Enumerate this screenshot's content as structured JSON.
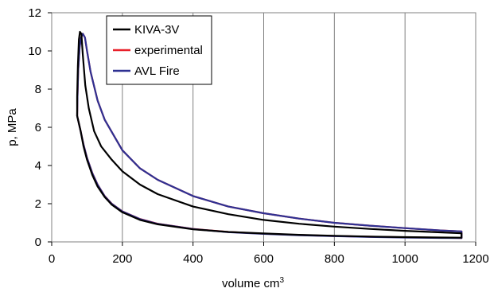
{
  "chart_data": {
    "type": "line",
    "title": "",
    "xlabel": "volume cm",
    "xlabel_superscript": "3",
    "ylabel": "p, MPa",
    "xlim": [
      0,
      1200
    ],
    "ylim": [
      0,
      12
    ],
    "x_ticks": [
      0,
      200,
      400,
      600,
      800,
      1000,
      1200
    ],
    "y_ticks": [
      0,
      2,
      4,
      6,
      8,
      10,
      12
    ],
    "grid": "vertical",
    "legend_position": "top-left",
    "series": [
      {
        "name": "KIVA-3V",
        "color": "#000000",
        "points": [
          [
            72,
            6.6
          ],
          [
            72,
            7.6
          ],
          [
            74,
            9.2
          ],
          [
            77,
            10.6
          ],
          [
            80,
            11.0
          ],
          [
            84,
            10.9
          ],
          [
            88,
            9.8
          ],
          [
            95,
            8.2
          ],
          [
            105,
            7.0
          ],
          [
            120,
            5.8
          ],
          [
            140,
            5.0
          ],
          [
            170,
            4.3
          ],
          [
            200,
            3.7
          ],
          [
            250,
            3.0
          ],
          [
            300,
            2.5
          ],
          [
            400,
            1.85
          ],
          [
            500,
            1.45
          ],
          [
            600,
            1.15
          ],
          [
            700,
            0.95
          ],
          [
            800,
            0.8
          ],
          [
            900,
            0.68
          ],
          [
            1000,
            0.58
          ],
          [
            1100,
            0.5
          ],
          [
            1160,
            0.45
          ],
          [
            1160,
            0.22
          ],
          [
            1100,
            0.23
          ],
          [
            1000,
            0.25
          ],
          [
            900,
            0.28
          ],
          [
            800,
            0.32
          ],
          [
            700,
            0.37
          ],
          [
            600,
            0.44
          ],
          [
            500,
            0.52
          ],
          [
            400,
            0.66
          ],
          [
            300,
            0.92
          ],
          [
            250,
            1.15
          ],
          [
            200,
            1.55
          ],
          [
            170,
            1.95
          ],
          [
            150,
            2.35
          ],
          [
            130,
            2.9
          ],
          [
            115,
            3.5
          ],
          [
            100,
            4.3
          ],
          [
            90,
            5.0
          ],
          [
            82,
            5.8
          ],
          [
            72,
            6.6
          ]
        ]
      },
      {
        "name": "experimental",
        "color": "#e8202a",
        "points": [
          [
            72,
            6.6
          ],
          [
            73,
            7.6
          ],
          [
            75,
            9.0
          ],
          [
            79,
            10.2
          ],
          [
            83,
            10.7
          ],
          [
            88,
            10.9
          ],
          [
            94,
            10.7
          ],
          [
            100,
            10.0
          ],
          [
            110,
            8.9
          ],
          [
            130,
            7.4
          ],
          [
            150,
            6.4
          ],
          [
            200,
            4.8
          ],
          [
            250,
            3.85
          ],
          [
            300,
            3.25
          ],
          [
            400,
            2.4
          ],
          [
            500,
            1.85
          ],
          [
            600,
            1.5
          ],
          [
            700,
            1.22
          ],
          [
            800,
            1.0
          ],
          [
            900,
            0.85
          ],
          [
            1000,
            0.72
          ],
          [
            1100,
            0.6
          ],
          [
            1160,
            0.55
          ],
          [
            1160,
            0.2
          ],
          [
            1100,
            0.22
          ],
          [
            1000,
            0.24
          ],
          [
            900,
            0.27
          ],
          [
            800,
            0.31
          ],
          [
            700,
            0.36
          ],
          [
            600,
            0.43
          ],
          [
            500,
            0.52
          ],
          [
            400,
            0.68
          ],
          [
            300,
            0.95
          ],
          [
            250,
            1.2
          ],
          [
            200,
            1.6
          ],
          [
            170,
            2.0
          ],
          [
            150,
            2.4
          ],
          [
            130,
            3.0
          ],
          [
            115,
            3.6
          ],
          [
            100,
            4.4
          ],
          [
            90,
            5.1
          ],
          [
            82,
            5.8
          ],
          [
            72,
            6.6
          ]
        ]
      },
      {
        "name": "AVL Fire",
        "color": "#2e3192",
        "points": [
          [
            72,
            6.6
          ],
          [
            73,
            7.6
          ],
          [
            75,
            9.0
          ],
          [
            79,
            10.2
          ],
          [
            83,
            10.7
          ],
          [
            88,
            10.9
          ],
          [
            94,
            10.7
          ],
          [
            100,
            10.0
          ],
          [
            110,
            8.9
          ],
          [
            130,
            7.4
          ],
          [
            150,
            6.4
          ],
          [
            200,
            4.8
          ],
          [
            250,
            3.85
          ],
          [
            300,
            3.25
          ],
          [
            400,
            2.4
          ],
          [
            500,
            1.85
          ],
          [
            600,
            1.5
          ],
          [
            700,
            1.22
          ],
          [
            800,
            1.0
          ],
          [
            900,
            0.85
          ],
          [
            1000,
            0.72
          ],
          [
            1100,
            0.6
          ],
          [
            1160,
            0.55
          ],
          [
            1160,
            0.2
          ],
          [
            1100,
            0.21
          ],
          [
            1000,
            0.23
          ],
          [
            900,
            0.26
          ],
          [
            800,
            0.3
          ],
          [
            700,
            0.35
          ],
          [
            600,
            0.42
          ],
          [
            500,
            0.51
          ],
          [
            400,
            0.67
          ],
          [
            300,
            0.94
          ],
          [
            250,
            1.19
          ],
          [
            200,
            1.59
          ],
          [
            170,
            1.99
          ],
          [
            150,
            2.39
          ],
          [
            130,
            2.99
          ],
          [
            115,
            3.59
          ],
          [
            100,
            4.39
          ],
          [
            90,
            5.09
          ],
          [
            82,
            5.79
          ],
          [
            72,
            6.6
          ]
        ]
      }
    ]
  }
}
